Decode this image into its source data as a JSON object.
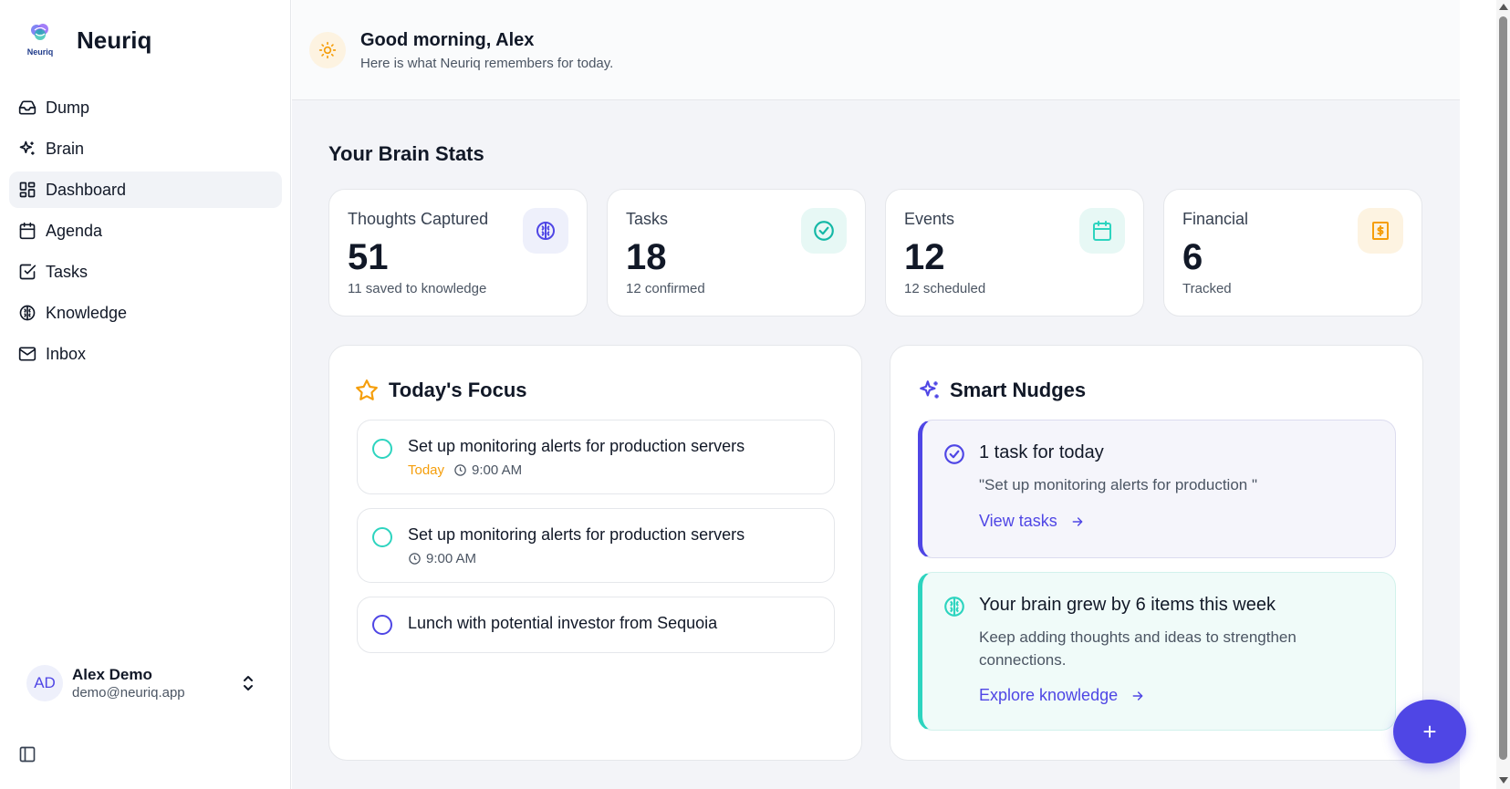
{
  "app": {
    "name": "Neuriq",
    "logo_text": "Neuriq",
    "accent": "#4f46e5"
  },
  "sidebar": {
    "items": [
      {
        "label": "Dump",
        "icon": "inbox-tray-icon"
      },
      {
        "label": "Brain",
        "icon": "sparkles-icon"
      },
      {
        "label": "Dashboard",
        "icon": "dashboard-grid-icon",
        "active": true
      },
      {
        "label": "Agenda",
        "icon": "calendar-icon"
      },
      {
        "label": "Tasks",
        "icon": "checkbox-icon"
      },
      {
        "label": "Knowledge",
        "icon": "brain-icon"
      },
      {
        "label": "Inbox",
        "icon": "mail-icon"
      }
    ],
    "user": {
      "initials": "AD",
      "name": "Alex Demo",
      "email": "demo@neuriq.app"
    }
  },
  "header": {
    "greeting": "Good morning, Alex",
    "subtitle": "Here is what Neuriq remembers for today."
  },
  "stats": {
    "title": "Your Brain Stats",
    "cards": [
      {
        "label": "Thoughts Captured",
        "value": "51",
        "sub": "11 saved to knowledge",
        "icon": "brain-icon",
        "color": "#4f46e5",
        "bg": "#eef0fb"
      },
      {
        "label": "Tasks",
        "value": "18",
        "sub": "12 confirmed",
        "icon": "check-circle-icon",
        "color": "#14b8a6",
        "bg": "#e7f8f5"
      },
      {
        "label": "Events",
        "value": "12",
        "sub": "12 scheduled",
        "icon": "calendar-icon",
        "color": "#2dd4bf",
        "bg": "#e7f8f5"
      },
      {
        "label": "Financial",
        "value": "6",
        "sub": "Tracked",
        "icon": "receipt-dollar-icon",
        "color": "#f59e0b",
        "bg": "#fdf3e1"
      }
    ]
  },
  "focus": {
    "title": "Today's Focus",
    "items": [
      {
        "title": "Set up monitoring alerts for production servers",
        "when": "Today",
        "time": "9:00 AM",
        "color": "#2dd4bf"
      },
      {
        "title": "Set up monitoring alerts for production servers",
        "time": "9:00 AM",
        "color": "#2dd4bf"
      },
      {
        "title": "Lunch with potential investor from Sequoia",
        "color": "#4f46e5"
      }
    ]
  },
  "nudges": {
    "title": "Smart Nudges",
    "items": [
      {
        "title": "1 task for today",
        "body": "\"Set up monitoring alerts for production \"",
        "link": "View tasks",
        "icon": "check-circle-icon",
        "color": "#4f46e5",
        "bg": "#f5f5fb",
        "border": "#dcdcef"
      },
      {
        "title": "Your brain grew by 6 items this week",
        "body": "Keep adding thoughts and ideas to strengthen connections.",
        "link": "Explore knowledge",
        "icon": "brain-icon",
        "color": "#2dd4bf",
        "bg": "#f0fbf9",
        "border": "#d2f2ec"
      }
    ]
  },
  "fab": {
    "label": "+"
  }
}
